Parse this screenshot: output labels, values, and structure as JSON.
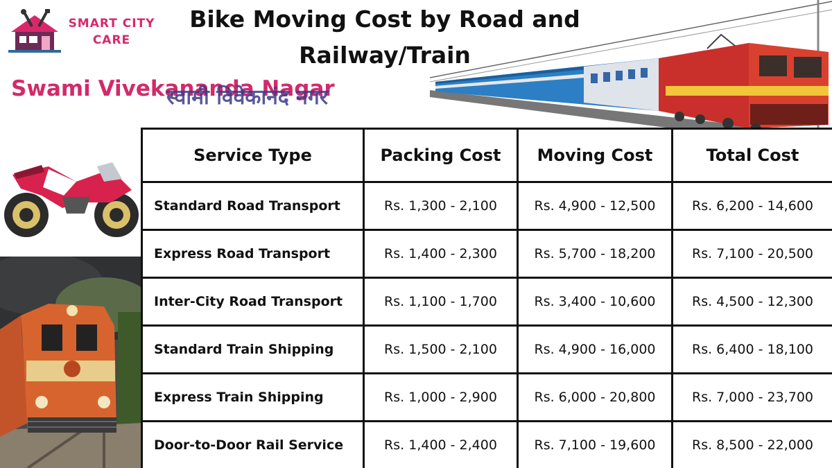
{
  "brand": {
    "line1": "SMART CITY",
    "line2": "CARE",
    "color": "#d8286b",
    "icon": "house-tools-icon"
  },
  "title": {
    "line1": "Bike Moving Cost by Road and",
    "line2": "Railway/Train"
  },
  "location": {
    "english": "Swami Vivekananda Nagar",
    "hindi": "स्वामी विवेकानंद नगर"
  },
  "images": {
    "top_right": "electric-train-icon",
    "left_top": "motorbike-icon",
    "left_bottom": "diesel-locomotive-icon"
  },
  "table": {
    "headers": [
      "Service Type",
      "Packing Cost",
      "Moving Cost",
      "Total Cost"
    ],
    "rows": [
      [
        "Standard Road Transport",
        "Rs. 1,300 - 2,100",
        "Rs. 4,900 - 12,500",
        "Rs. 6,200 - 14,600"
      ],
      [
        "Express Road Transport",
        "Rs. 1,400 - 2,300",
        "Rs. 5,700 - 18,200",
        "Rs. 7,100 - 20,500"
      ],
      [
        "Inter-City Road Transport",
        "Rs. 1,100 - 1,700",
        "Rs. 3,400 - 10,600",
        "Rs. 4,500 - 12,300"
      ],
      [
        "Standard Train Shipping",
        "Rs. 1,500 - 2,100",
        "Rs. 4,900 - 16,000",
        "Rs. 6,400 - 18,100"
      ],
      [
        "Express Train Shipping",
        "Rs. 1,000 - 2,900",
        "Rs. 6,000 - 20,800",
        "Rs. 7,000 - 23,700"
      ],
      [
        "Door-to-Door Rail Service",
        "Rs. 1,400 - 2,400",
        "Rs. 7,100 - 19,600",
        "Rs. 8,500 - 22,000"
      ]
    ]
  },
  "colors": {
    "accent": "#d22a6b",
    "hindi_text": "#3b3b8a",
    "border": "#111111"
  }
}
